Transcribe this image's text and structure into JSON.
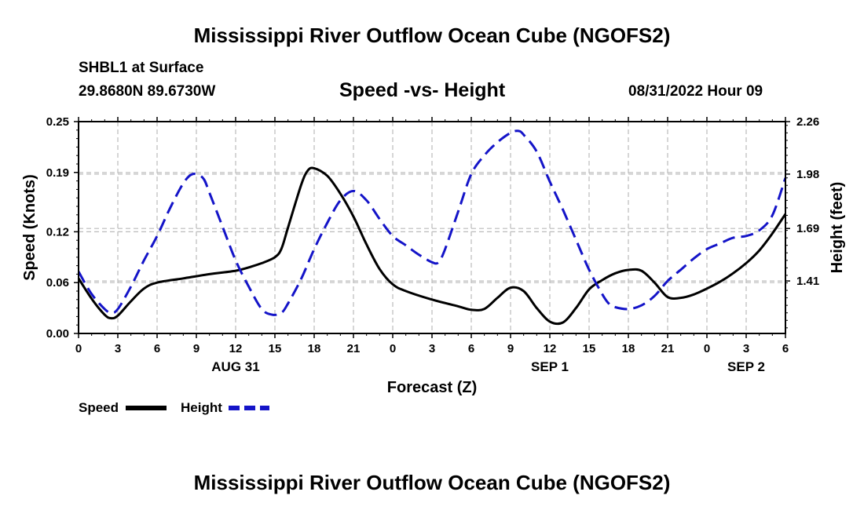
{
  "title": "Mississippi River Outflow Ocean Cube (NGOFS2)",
  "footer_title": "Mississippi River Outflow Ocean Cube (NGOFS2)",
  "station": "SHBL1 at Surface",
  "coords": "29.8680N  89.6730W",
  "subtitle": "Speed -vs- Height",
  "datetime": "08/31/2022 Hour 09",
  "colors": {
    "speed": "#000000",
    "height": "#1414c8",
    "grid": "#bbbbbb"
  },
  "chart_data": {
    "type": "line",
    "title": "Speed -vs- Height",
    "xlabel": "Forecast (Z)",
    "ylabel": "Speed (Knots)",
    "y2label": "Height (feet)",
    "xlim": [
      0,
      54
    ],
    "ylim": [
      0,
      0.25
    ],
    "y2lim": [
      1.13,
      2.26
    ],
    "x_ticks": [
      0,
      3,
      6,
      9,
      12,
      15,
      18,
      21,
      24,
      27,
      30,
      33,
      36,
      39,
      42,
      45,
      48,
      51,
      54
    ],
    "x_tick_labels": [
      "0",
      "3",
      "6",
      "9",
      "12",
      "15",
      "18",
      "21",
      "0",
      "3",
      "6",
      "9",
      "12",
      "15",
      "18",
      "21",
      "0",
      "3",
      "6"
    ],
    "y_ticks": [
      0.0,
      0.06,
      0.12,
      0.19,
      0.25
    ],
    "y_tick_labels": [
      "0.00",
      "0.06",
      "0.12",
      "0.19",
      "0.25"
    ],
    "y2_ticks": [
      1.41,
      1.69,
      1.98,
      2.26
    ],
    "y2_tick_labels": [
      "1.41",
      "1.69",
      "1.98",
      "2.26"
    ],
    "date_labels": [
      {
        "x": 12,
        "label": "AUG 31"
      },
      {
        "x": 36,
        "label": "SEP 1"
      },
      {
        "x": 51,
        "label": "SEP 2"
      }
    ],
    "series": [
      {
        "name": "Speed",
        "axis": "left",
        "style": "solid",
        "x": [
          0,
          1,
          2,
          2.5,
          3,
          4,
          5,
          6,
          8,
          10,
          12,
          13,
          14,
          15,
          15.5,
          16,
          17,
          17.5,
          18,
          19,
          20,
          21,
          22,
          23,
          24,
          25,
          27,
          29,
          30,
          31,
          32,
          33,
          34,
          35,
          36,
          37,
          38,
          39,
          40,
          41,
          42,
          43,
          44,
          45,
          46,
          47,
          48,
          49,
          50,
          51,
          52,
          53,
          54
        ],
        "values": [
          0.065,
          0.041,
          0.022,
          0.018,
          0.021,
          0.038,
          0.053,
          0.06,
          0.065,
          0.07,
          0.074,
          0.078,
          0.083,
          0.09,
          0.1,
          0.125,
          0.175,
          0.192,
          0.195,
          0.186,
          0.165,
          0.138,
          0.105,
          0.076,
          0.058,
          0.05,
          0.04,
          0.032,
          0.028,
          0.029,
          0.042,
          0.054,
          0.05,
          0.03,
          0.014,
          0.013,
          0.03,
          0.052,
          0.063,
          0.071,
          0.075,
          0.074,
          0.06,
          0.043,
          0.042,
          0.046,
          0.053,
          0.061,
          0.071,
          0.083,
          0.098,
          0.118,
          0.141
        ]
      },
      {
        "name": "Height",
        "axis": "right",
        "style": "dashed",
        "x": [
          0,
          1,
          2,
          2.5,
          3,
          4,
          5,
          6,
          7,
          8,
          8.7,
          9.5,
          10,
          11,
          12,
          13,
          14,
          14.8,
          15.5,
          16,
          17,
          18,
          19,
          20,
          21,
          22,
          23,
          24,
          25,
          26,
          27,
          27.5,
          28,
          29,
          30,
          31,
          32,
          33,
          33.6,
          34,
          35,
          36,
          37,
          38,
          39,
          40,
          40.5,
          41,
          42,
          43,
          44,
          45,
          46,
          47,
          48,
          49,
          50,
          51,
          52,
          53,
          54
        ],
        "values": [
          1.46,
          1.34,
          1.26,
          1.24,
          1.26,
          1.38,
          1.52,
          1.65,
          1.8,
          1.93,
          1.98,
          1.96,
          1.88,
          1.7,
          1.52,
          1.38,
          1.26,
          1.23,
          1.24,
          1.29,
          1.42,
          1.58,
          1.72,
          1.84,
          1.89,
          1.84,
          1.74,
          1.65,
          1.6,
          1.55,
          1.51,
          1.51,
          1.58,
          1.78,
          1.98,
          2.08,
          2.15,
          2.2,
          2.21,
          2.19,
          2.1,
          1.94,
          1.79,
          1.63,
          1.47,
          1.34,
          1.29,
          1.27,
          1.26,
          1.28,
          1.33,
          1.41,
          1.47,
          1.53,
          1.58,
          1.61,
          1.64,
          1.65,
          1.68,
          1.76,
          1.96
        ]
      }
    ],
    "legend": [
      {
        "label": "Speed",
        "series": "Speed"
      },
      {
        "label": "Height",
        "series": "Height"
      }
    ],
    "legend_position": "bottom-left"
  }
}
